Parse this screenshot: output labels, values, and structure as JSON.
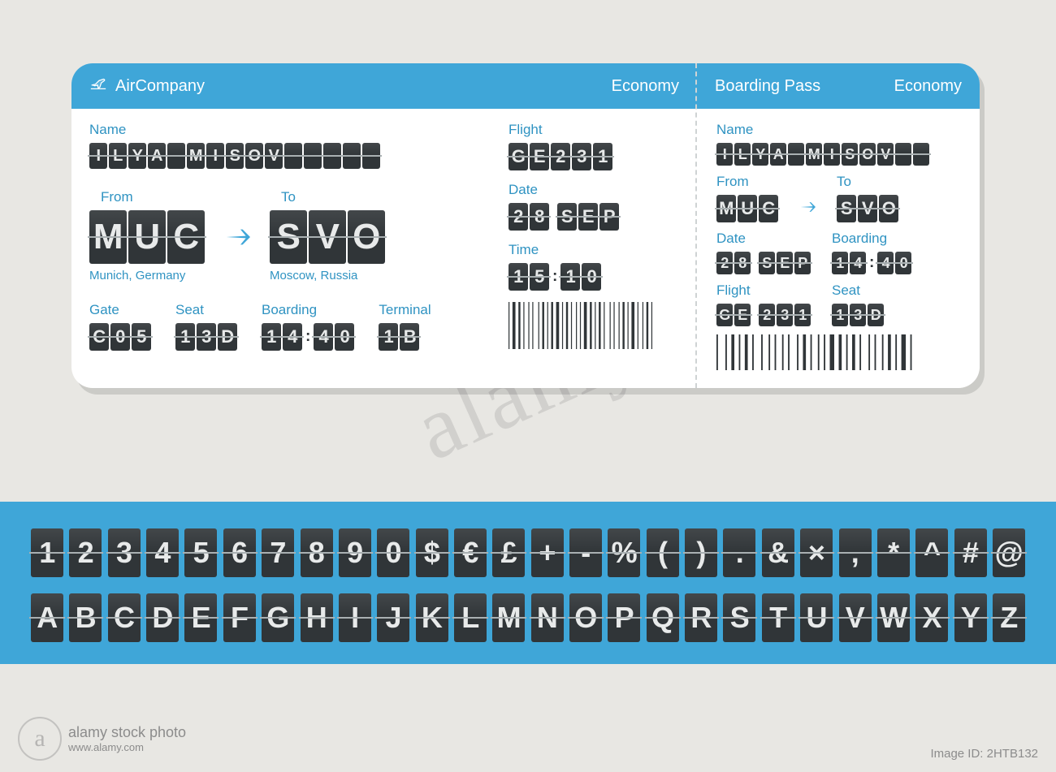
{
  "colors": {
    "page_bg": "#e8e7e3",
    "accent": "#3fa6d8",
    "accent_text": "#2f93c2",
    "flip_bg": "#303538",
    "flip_fg": "#e8eaea",
    "flip_hinge": "#a9b0b2",
    "panel_bg": "#3fa6d8",
    "white": "#ffffff"
  },
  "ticket": {
    "header": {
      "airline": "AirCompany",
      "class": "Economy",
      "stub_title": "Boarding Pass",
      "stub_class": "Economy"
    },
    "labels": {
      "name": "Name",
      "from": "From",
      "to": "To",
      "flight": "Flight",
      "date": "Date",
      "time": "Time",
      "gate": "Gate",
      "seat": "Seat",
      "boarding": "Boarding",
      "terminal": "Terminal"
    },
    "values": {
      "name": "ILYA MISOV",
      "from_code": "MUC",
      "from_city": "Munich, Germany",
      "to_code": "SVO",
      "to_city": "Moscow, Russia",
      "flight": "GE231",
      "date": "28 SEP",
      "time": "15:10",
      "gate": "C05",
      "seat": "13D",
      "boarding": "14:40",
      "terminal": "1B"
    },
    "stub": {
      "name": "ILYA MISOV",
      "from": "MUC",
      "to": "SVO",
      "date": "28 SEP",
      "boarding": "14:40",
      "flight": "GE 231",
      "seat": "13D"
    },
    "barcode_main": [
      1,
      1,
      3,
      1,
      2,
      1,
      1,
      2,
      1,
      1,
      1,
      3,
      1,
      1,
      2,
      1,
      1,
      1,
      2,
      1,
      3,
      1,
      1,
      1,
      2,
      1,
      1,
      2,
      1,
      1,
      1,
      1,
      3,
      1,
      2,
      1,
      1,
      1,
      2,
      1,
      1,
      3,
      1,
      1,
      1,
      2,
      1,
      1,
      2,
      1,
      1,
      1,
      3,
      1,
      1,
      2,
      1,
      1,
      2,
      1,
      1,
      1
    ],
    "barcode_stub": [
      1,
      3,
      1,
      1,
      2,
      1,
      1,
      1,
      2,
      1,
      1,
      3,
      1,
      2,
      1,
      1,
      1,
      2,
      1,
      1,
      1,
      3,
      1,
      1,
      2,
      1,
      1,
      2,
      1,
      1,
      1,
      1,
      3,
      1,
      2,
      1,
      1,
      1,
      2,
      1,
      1,
      3,
      1,
      1,
      1,
      2,
      1,
      1,
      2,
      1,
      1,
      1,
      3,
      1,
      1,
      2
    ]
  },
  "font_panel": {
    "row1": [
      "1",
      "2",
      "3",
      "4",
      "5",
      "6",
      "7",
      "8",
      "9",
      "0",
      "$",
      "€",
      "£",
      "+",
      "-",
      "%",
      "(",
      ")",
      ".",
      "&",
      "×",
      ",",
      "*",
      "^",
      "#",
      "@"
    ],
    "row2": [
      "A",
      "B",
      "C",
      "D",
      "E",
      "F",
      "G",
      "H",
      "I",
      "J",
      "K",
      "L",
      "M",
      "N",
      "O",
      "P",
      "Q",
      "R",
      "S",
      "T",
      "U",
      "V",
      "W",
      "X",
      "Y",
      "Z"
    ]
  },
  "watermark": {
    "text": "alamy",
    "stock_label": "alamy stock photo",
    "image_id_label": "Image ID: 2HTB132",
    "url": "www.alamy.com"
  }
}
